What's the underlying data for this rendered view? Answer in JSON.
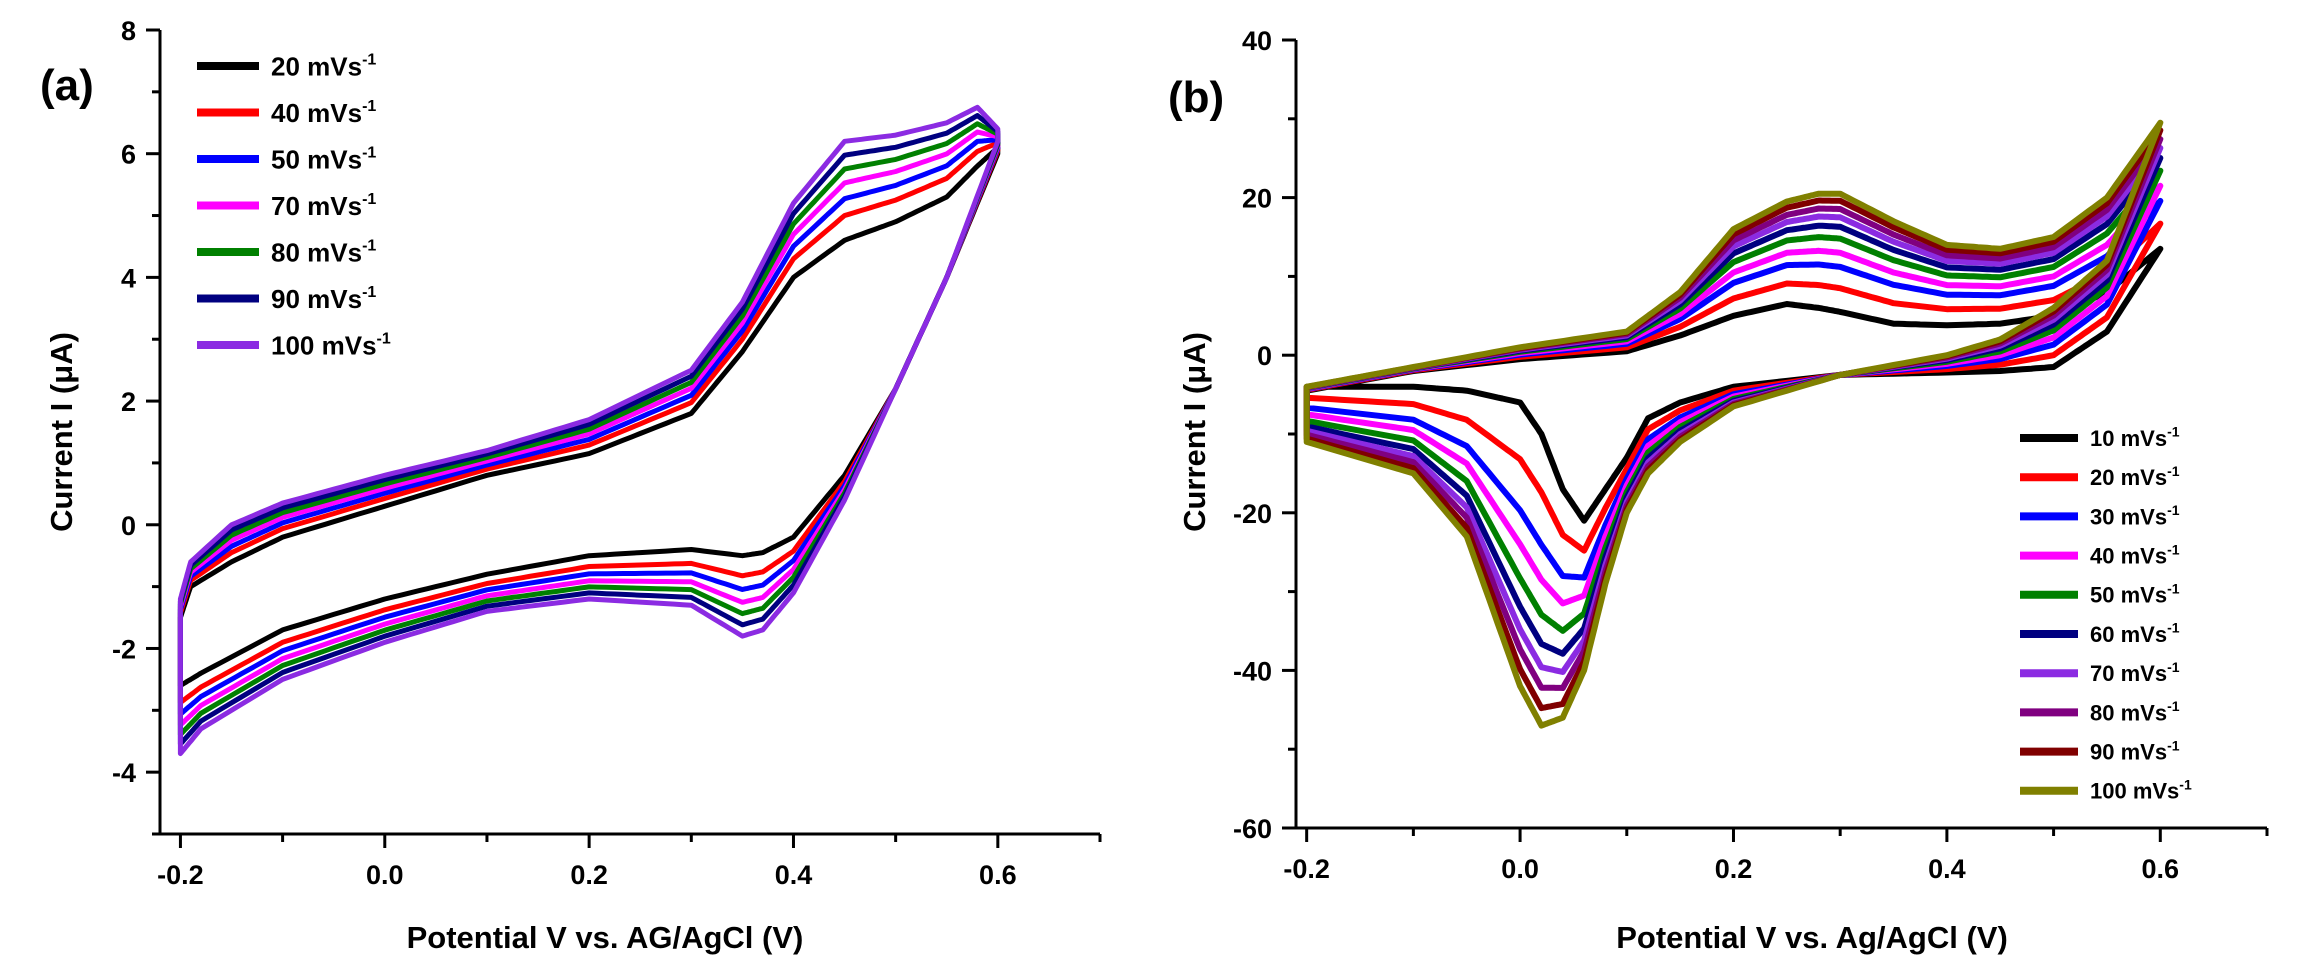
{
  "chart_data": [
    {
      "type": "line",
      "panel_label": "(a)",
      "xlabel": "Potential V vs. AG/AgCl (V)",
      "ylabel": "Current I (μA)",
      "xlim": [
        -0.22,
        0.7
      ],
      "ylim": [
        -5,
        8
      ],
      "xticks": [
        -0.2,
        0.0,
        0.2,
        0.4,
        0.6
      ],
      "xtick_labels": [
        "-0.2",
        "0.0",
        "0.2",
        "0.4",
        "0.6"
      ],
      "yticks": [
        -4,
        -2,
        0,
        2,
        4,
        6,
        8
      ],
      "ytick_labels": [
        "-4",
        "-2",
        "0",
        "2",
        "4",
        "6",
        "8"
      ],
      "legend_position": "top-left",
      "legend_unit": "mVs",
      "legend_sup": "-1",
      "series": [
        {
          "name": "20",
          "color": "#000000",
          "k": 0.0
        },
        {
          "name": "40",
          "color": "#ff0000",
          "k": 0.25
        },
        {
          "name": "50",
          "color": "#0000ff",
          "k": 0.42
        },
        {
          "name": "70",
          "color": "#ff00ff",
          "k": 0.58
        },
        {
          "name": "80",
          "color": "#008000",
          "k": 0.72
        },
        {
          "name": "90",
          "color": "#000080",
          "k": 0.86
        },
        {
          "name": "100",
          "color": "#8b2be2",
          "k": 1.0
        }
      ],
      "anodic_keypoints": {
        "x": [
          -0.2,
          -0.19,
          -0.15,
          -0.1,
          0.0,
          0.1,
          0.2,
          0.3,
          0.35,
          0.4,
          0.45,
          0.5,
          0.55,
          0.58,
          0.6
        ],
        "y_min": [
          -1.5,
          -1.0,
          -0.6,
          -0.2,
          0.3,
          0.8,
          1.15,
          1.8,
          2.8,
          4.0,
          4.6,
          4.9,
          5.3,
          5.8,
          6.1
        ],
        "y_max": [
          -1.2,
          -0.6,
          0.0,
          0.35,
          0.8,
          1.2,
          1.7,
          2.5,
          3.6,
          5.2,
          6.2,
          6.3,
          6.5,
          6.75,
          6.4
        ]
      },
      "cathodic_keypoints": {
        "x": [
          0.6,
          0.55,
          0.5,
          0.45,
          0.4,
          0.37,
          0.35,
          0.3,
          0.2,
          0.1,
          0.0,
          -0.1,
          -0.18,
          -0.2
        ],
        "y_min": [
          6.0,
          4.0,
          2.2,
          0.8,
          -0.2,
          -0.45,
          -0.5,
          -0.4,
          -0.5,
          -0.8,
          -1.2,
          -1.7,
          -2.4,
          -2.6
        ],
        "y_max": [
          6.2,
          4.0,
          2.2,
          0.4,
          -1.1,
          -1.7,
          -1.8,
          -1.3,
          -1.2,
          -1.4,
          -1.9,
          -2.5,
          -3.3,
          -3.7
        ]
      }
    },
    {
      "type": "line",
      "panel_label": "(b)",
      "xlabel": "Potential V vs. Ag/AgCl (V)",
      "ylabel": "Current I (μA)",
      "xlim": [
        -0.21,
        0.7
      ],
      "ylim": [
        -60,
        40
      ],
      "xticks": [
        -0.2,
        0.0,
        0.2,
        0.4,
        0.6
      ],
      "xtick_labels": [
        "-0.2",
        "0.0",
        "0.2",
        "0.4",
        "0.6"
      ],
      "yticks": [
        -60,
        -40,
        -20,
        0,
        20,
        40
      ],
      "ytick_labels": [
        "-60",
        "-40",
        "-20",
        "0",
        "20",
        "40"
      ],
      "legend_position": "bottom-right",
      "legend_unit": "mVs",
      "legend_sup": "-1",
      "series": [
        {
          "name": "10",
          "color": "#000000",
          "k": 0.0
        },
        {
          "name": "20",
          "color": "#ff0000",
          "k": 0.2
        },
        {
          "name": "30",
          "color": "#0000ff",
          "k": 0.38
        },
        {
          "name": "40",
          "color": "#ff00ff",
          "k": 0.5
        },
        {
          "name": "50",
          "color": "#008000",
          "k": 0.62
        },
        {
          "name": "60",
          "color": "#000080",
          "k": 0.72
        },
        {
          "name": "70",
          "color": "#8b2be2",
          "k": 0.8
        },
        {
          "name": "80",
          "color": "#800080",
          "k": 0.87
        },
        {
          "name": "90",
          "color": "#800000",
          "k": 0.94
        },
        {
          "name": "100",
          "color": "#808000",
          "k": 1.0
        }
      ],
      "anodic_keypoints": {
        "x": [
          -0.2,
          -0.1,
          0.0,
          0.1,
          0.15,
          0.2,
          0.25,
          0.28,
          0.3,
          0.35,
          0.4,
          0.45,
          0.5,
          0.55,
          0.6
        ],
        "y_min": [
          -4.5,
          -2.0,
          -0.5,
          0.5,
          2.5,
          5.0,
          6.5,
          6.0,
          5.5,
          4.0,
          3.8,
          4.0,
          5.0,
          8.0,
          13.5
        ],
        "y_max": [
          -4.0,
          -1.5,
          1.0,
          3.0,
          8.0,
          16.0,
          19.5,
          20.5,
          20.5,
          17.0,
          14.0,
          13.5,
          15.0,
          20.0,
          29.5
        ]
      },
      "cathodic_keypoints": {
        "x": [
          0.6,
          0.55,
          0.5,
          0.45,
          0.4,
          0.3,
          0.2,
          0.15,
          0.12,
          0.1,
          0.08,
          0.06,
          0.04,
          0.02,
          0.0,
          -0.05,
          -0.1,
          -0.2
        ],
        "y_min": [
          13.5,
          3.0,
          -1.5,
          -2.0,
          -2.2,
          -2.5,
          -4.0,
          -6.0,
          -8.0,
          -13.0,
          -17.0,
          -21.0,
          -17.0,
          -10.0,
          -6.0,
          -4.5,
          -4.0,
          -4.0
        ],
        "y_max": [
          29.5,
          12.0,
          6.0,
          2.0,
          0.0,
          -2.5,
          -6.5,
          -11.0,
          -15.0,
          -20.0,
          -29.0,
          -40.0,
          -46.0,
          -47.0,
          -42.0,
          -23.0,
          -15.0,
          -11.0
        ]
      }
    }
  ]
}
